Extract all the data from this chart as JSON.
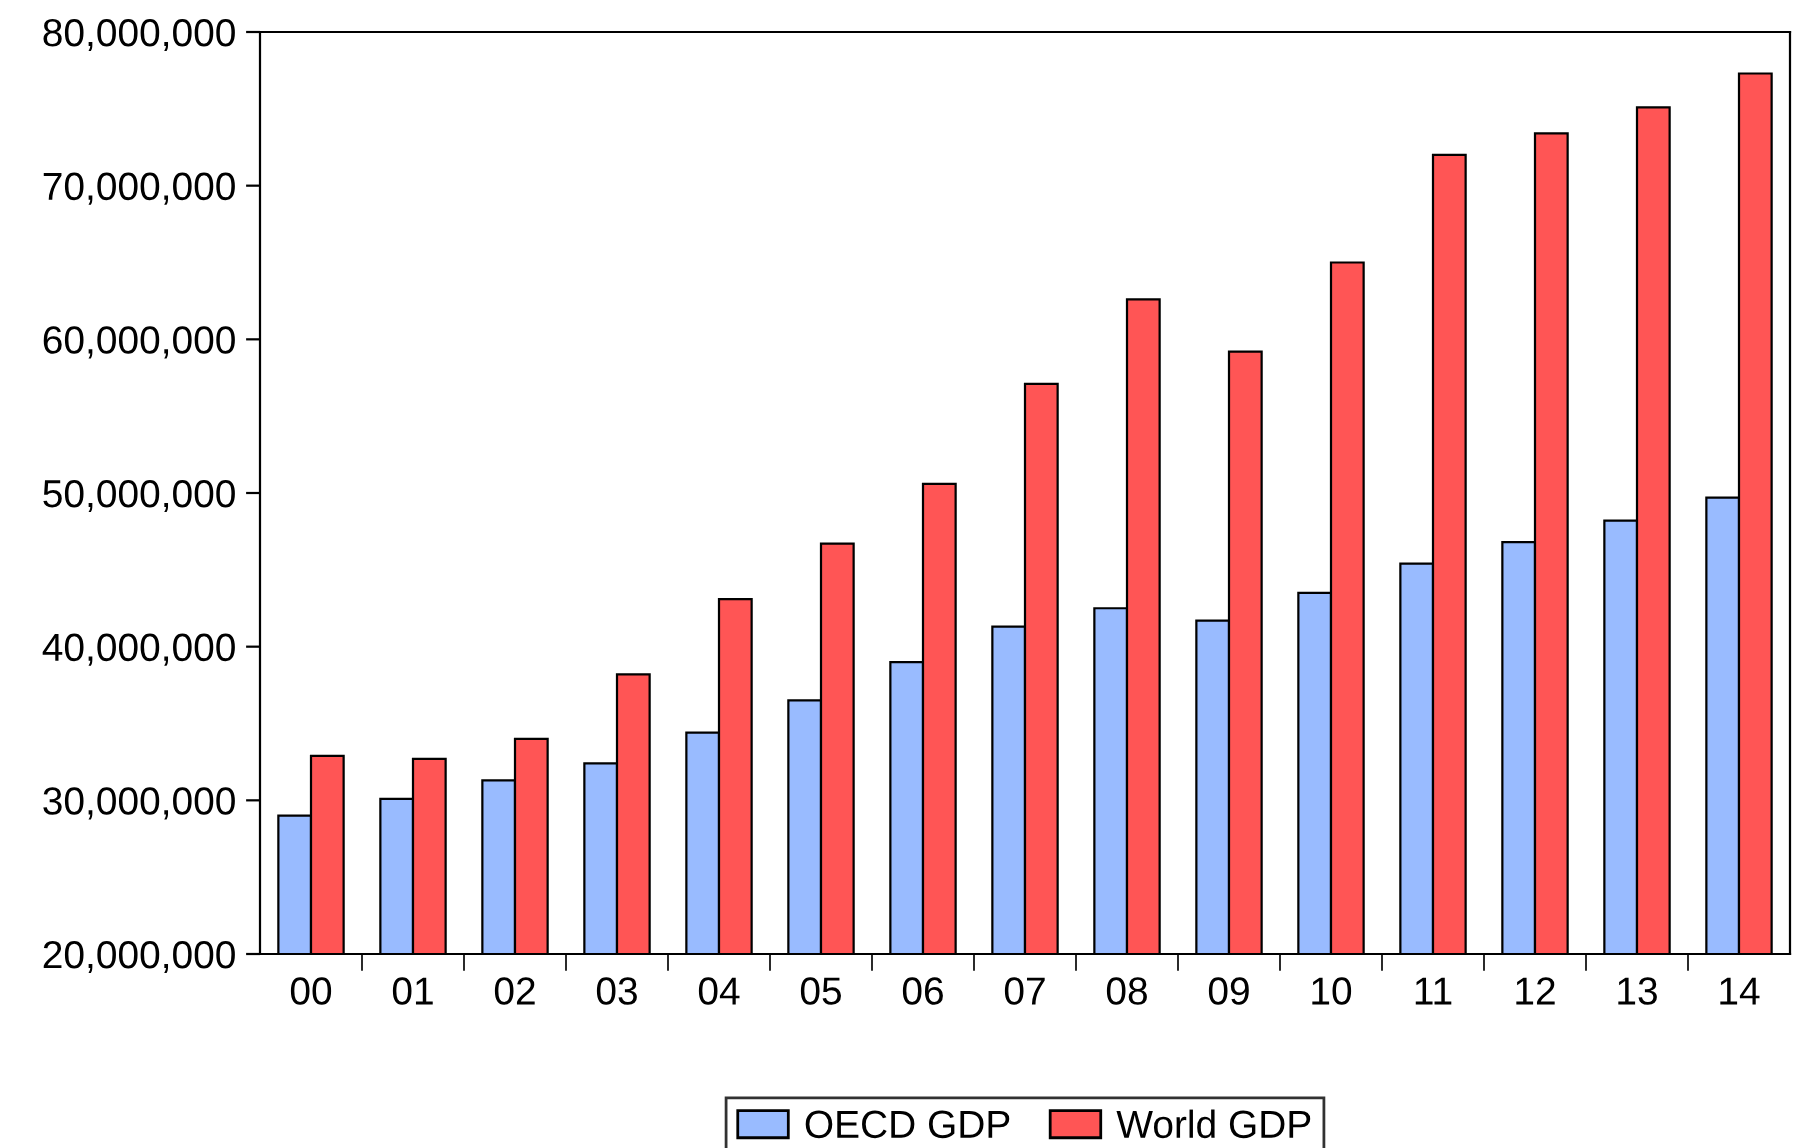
{
  "chart_data": {
    "type": "bar",
    "categories": [
      "00",
      "01",
      "02",
      "03",
      "04",
      "05",
      "06",
      "07",
      "08",
      "09",
      "10",
      "11",
      "12",
      "13",
      "14"
    ],
    "series": [
      {
        "name": "OECD GDP",
        "color": "#99bbff",
        "values": [
          29000000,
          30100000,
          31300000,
          32400000,
          34400000,
          36500000,
          39000000,
          41300000,
          42500000,
          41700000,
          43500000,
          45400000,
          46800000,
          48200000,
          49700000
        ]
      },
      {
        "name": "World GDP",
        "color": "#ff5555",
        "values": [
          32900000,
          32700000,
          34000000,
          38200000,
          43100000,
          46700000,
          50600000,
          57100000,
          62600000,
          59200000,
          65000000,
          72000000,
          73400000,
          75100000,
          77300000
        ]
      }
    ],
    "ylim": [
      20000000,
      80000000
    ],
    "yticks": [
      {
        "value": 20000000,
        "label": "20,000,000"
      },
      {
        "value": 30000000,
        "label": "30,000,000"
      },
      {
        "value": 40000000,
        "label": "40,000,000"
      },
      {
        "value": 50000000,
        "label": "50,000,000"
      },
      {
        "value": 60000000,
        "label": "60,000,000"
      },
      {
        "value": 70000000,
        "label": "70,000,000"
      },
      {
        "value": 80000000,
        "label": "80,000,000"
      }
    ],
    "grid": false,
    "legend": "bottom"
  }
}
